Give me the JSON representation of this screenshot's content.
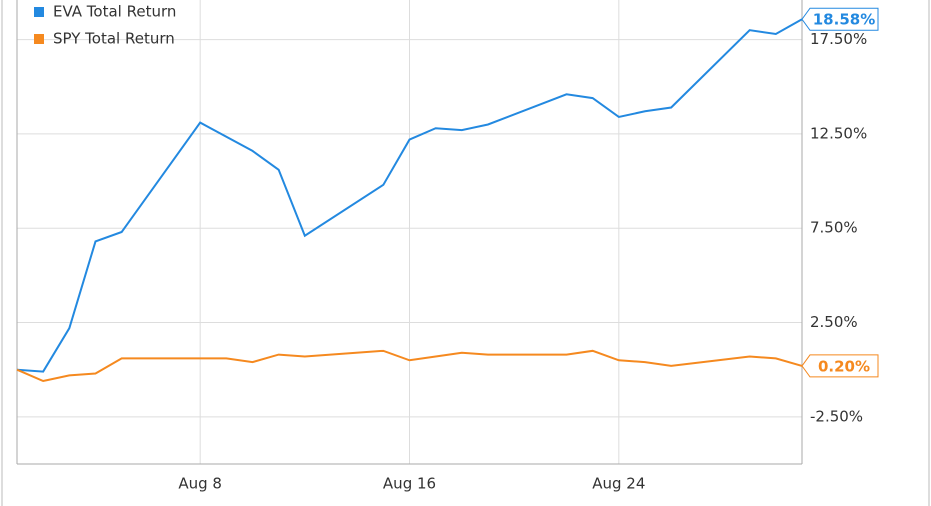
{
  "chart_data": {
    "type": "line",
    "series": [
      {
        "name": "EVA Total Return",
        "color": "#2389e0",
        "last_value_label": "18.58%",
        "x": [
          1,
          2,
          3,
          4,
          5,
          8,
          10,
          11,
          12,
          15,
          16,
          17,
          18,
          19,
          22,
          23,
          24,
          25,
          26,
          29,
          30,
          31
        ],
        "values": [
          0,
          -0.1,
          2.2,
          6.8,
          7.3,
          13.1,
          11.6,
          10.6,
          7.1,
          9.8,
          12.2,
          12.8,
          12.7,
          13.0,
          14.6,
          14.4,
          13.4,
          13.7,
          13.9,
          18.0,
          17.8,
          18.58
        ]
      },
      {
        "name": "SPY Total Return",
        "color": "#f5891f",
        "last_value_label": "0.20%",
        "x": [
          1,
          2,
          3,
          4,
          5,
          8,
          9,
          10,
          11,
          12,
          15,
          16,
          17,
          18,
          19,
          22,
          23,
          24,
          25,
          26,
          29,
          30,
          31
        ],
        "values": [
          0,
          -0.6,
          -0.3,
          -0.2,
          0.6,
          0.6,
          0.6,
          0.4,
          0.8,
          0.7,
          1.0,
          0.5,
          0.7,
          0.9,
          0.8,
          0.8,
          1.0,
          0.5,
          0.4,
          0.2,
          0.7,
          0.6,
          0.2
        ]
      }
    ],
    "xlim": [
      1,
      31
    ],
    "xticks": [
      {
        "value": 8,
        "label": "Aug 8"
      },
      {
        "value": 16,
        "label": "Aug 16"
      },
      {
        "value": 24,
        "label": "Aug 24"
      }
    ],
    "ylim": [
      -5,
      19.6
    ],
    "yticks": [
      {
        "value": -2.5,
        "label": "-2.50%"
      },
      {
        "value": 2.5,
        "label": "2.50%"
      },
      {
        "value": 7.5,
        "label": "7.50%"
      },
      {
        "value": 12.5,
        "label": "12.50%"
      },
      {
        "value": 17.5,
        "label": "17.50%"
      }
    ],
    "grid": true,
    "legend": "top-left"
  }
}
